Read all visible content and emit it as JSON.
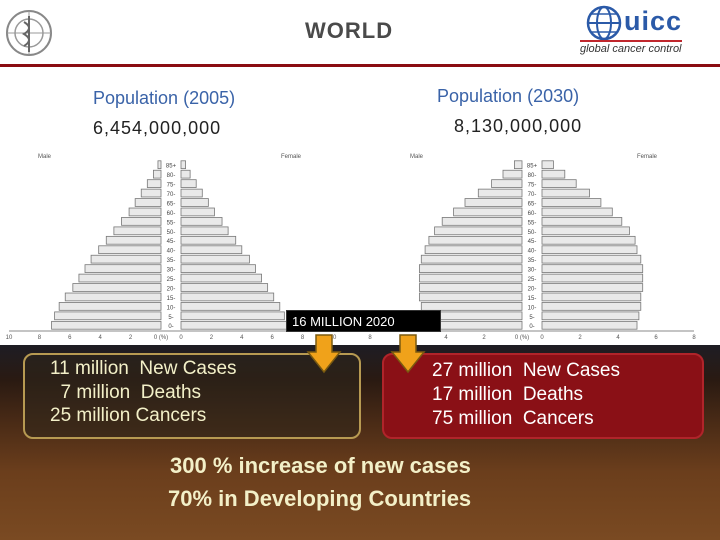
{
  "header": {
    "title": "WORLD",
    "org_logo_left": "un-emblem-icon",
    "org_logo_right": {
      "name": "uicc",
      "tagline": "global cancer control"
    }
  },
  "colors": {
    "accent": "#8a0c12",
    "title_blue": "#3a63a8",
    "bar_fill": "#e9e9e9",
    "bar_stroke": "#777777",
    "right_panel": "#8a1016"
  },
  "callout": "16 MILLION 2020",
  "panel_left": {
    "line1": "11 million  New Cases",
    "line2": "  7 million  Deaths",
    "line3": "25 million Cancers"
  },
  "panel_right": {
    "line1": "27 million  New Cases",
    "line2": "17 million  Deaths",
    "line3": "75 million  Cancers"
  },
  "summary": {
    "line1": "300 % increase of new cases",
    "line2": "70% in Developing Countries"
  },
  "chart_data": [
    {
      "type": "bar",
      "orientation": "horizontal-population-pyramid",
      "title": "Population (2005)",
      "subtitle": "6,454,000,000",
      "left_label": "Male",
      "right_label": "Female",
      "categories": [
        "85+",
        "80-",
        "75-",
        "70-",
        "65-",
        "60-",
        "55-",
        "50-",
        "45-",
        "40-",
        "35-",
        "30-",
        "25-",
        "20-",
        "15-",
        "10-",
        "5-",
        "0-"
      ],
      "series": [
        {
          "name": "Male",
          "values": [
            0.2,
            0.5,
            0.9,
            1.3,
            1.7,
            2.1,
            2.6,
            3.1,
            3.6,
            4.1,
            4.6,
            5.0,
            5.4,
            5.8,
            6.3,
            6.7,
            7.0,
            7.2
          ]
        },
        {
          "name": "Female",
          "values": [
            0.3,
            0.6,
            1.0,
            1.4,
            1.8,
            2.2,
            2.7,
            3.1,
            3.6,
            4.0,
            4.5,
            4.9,
            5.3,
            5.7,
            6.1,
            6.5,
            6.8,
            7.0
          ]
        }
      ],
      "x_ticks_left": [
        "10",
        "8",
        "6",
        "4",
        "2",
        "0 (%)"
      ],
      "x_ticks_right": [
        "0",
        "2",
        "4",
        "6",
        "8",
        "10"
      ],
      "xlim": [
        0,
        10
      ]
    },
    {
      "type": "bar",
      "orientation": "horizontal-population-pyramid",
      "title": "Population (2030)",
      "subtitle": "8,130,000,000",
      "left_label": "Male",
      "right_label": "Female",
      "categories": [
        "85+",
        "80-",
        "75-",
        "70-",
        "65-",
        "60-",
        "55-",
        "50-",
        "45-",
        "40-",
        "35-",
        "30-",
        "25-",
        "20-",
        "15-",
        "10-",
        "5-",
        "0-"
      ],
      "series": [
        {
          "name": "Male",
          "values": [
            0.4,
            1.0,
            1.6,
            2.3,
            3.0,
            3.6,
            4.2,
            4.6,
            4.9,
            5.1,
            5.3,
            5.4,
            5.4,
            5.4,
            5.4,
            5.3,
            5.3,
            5.2
          ]
        },
        {
          "name": "Female",
          "values": [
            0.6,
            1.2,
            1.8,
            2.5,
            3.1,
            3.7,
            4.2,
            4.6,
            4.9,
            5.0,
            5.2,
            5.3,
            5.3,
            5.3,
            5.2,
            5.2,
            5.1,
            5.0
          ]
        }
      ],
      "x_ticks_left": [
        "8",
        "6",
        "4",
        "2",
        "0 (%)"
      ],
      "x_ticks_right": [
        "0",
        "2",
        "4",
        "6",
        "8"
      ],
      "xlim": [
        0,
        8
      ]
    }
  ]
}
